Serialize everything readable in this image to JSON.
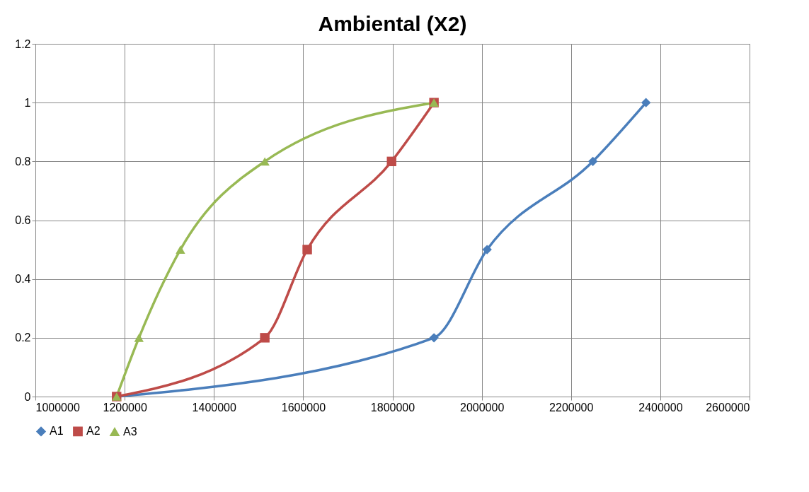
{
  "chart_data": {
    "type": "line",
    "title": "Ambiental (X2)",
    "xlim": [
      1000000,
      2600000
    ],
    "xticks": [
      1000000,
      1200000,
      1400000,
      1600000,
      1800000,
      2000000,
      2200000,
      2400000,
      2600000
    ],
    "ylim": [
      0,
      1.2
    ],
    "yticks": [
      0,
      0.2,
      0.4,
      0.6,
      0.8,
      1,
      1.2
    ],
    "grid": true,
    "legend": "bottom",
    "series": [
      {
        "name": "A1",
        "color": "#4a7ebb",
        "marker": "diamond",
        "x": [
          1182000,
          1893000,
          2012000,
          2249000,
          2368000
        ],
        "values": [
          0,
          0.2,
          0.5,
          0.8,
          1
        ]
      },
      {
        "name": "A2",
        "color": "#be4b48",
        "marker": "square",
        "x": [
          1182000,
          1514000,
          1609000,
          1798000,
          1893000
        ],
        "values": [
          0,
          0.2,
          0.5,
          0.8,
          1
        ]
      },
      {
        "name": "A3",
        "color": "#98b954",
        "marker": "triangle",
        "x": [
          1182000,
          1232000,
          1325000,
          1514000,
          1893000
        ],
        "values": [
          0,
          0.2,
          0.5,
          0.8,
          1
        ]
      }
    ]
  }
}
